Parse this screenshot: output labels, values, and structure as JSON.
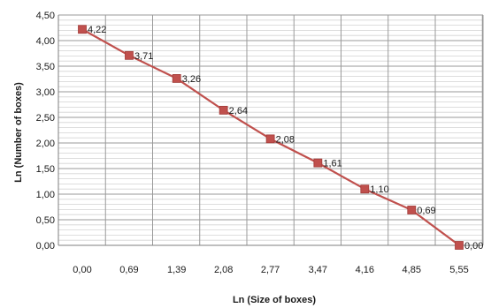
{
  "chart_data": {
    "type": "line",
    "x_tick_labels": [
      "0,00",
      "0,69",
      "1,39",
      "2,08",
      "2,77",
      "3,47",
      "4,16",
      "4,85",
      "5,55"
    ],
    "x": [
      0.0,
      0.69,
      1.39,
      2.08,
      2.77,
      3.47,
      4.16,
      4.85,
      5.55
    ],
    "series": [
      {
        "values": [
          4.22,
          3.71,
          3.26,
          2.64,
          2.08,
          1.61,
          1.1,
          0.69,
          0.0
        ],
        "labels": [
          "4,22",
          "3,71",
          "3,26",
          "2,64",
          "2,08",
          "1,61",
          "1,10",
          "0,69",
          "0,00"
        ],
        "color": "#c0504d"
      }
    ],
    "y_tick_labels": [
      "0,00",
      "0,50",
      "1,00",
      "1,50",
      "2,00",
      "2,50",
      "3,00",
      "3,50",
      "4,00",
      "4,50"
    ],
    "ylim": [
      0,
      4.5
    ],
    "xlabel": "Ln (Size of boxes)",
    "ylabel": "Ln (Number of boxes)",
    "grid": true,
    "legend": "none"
  }
}
